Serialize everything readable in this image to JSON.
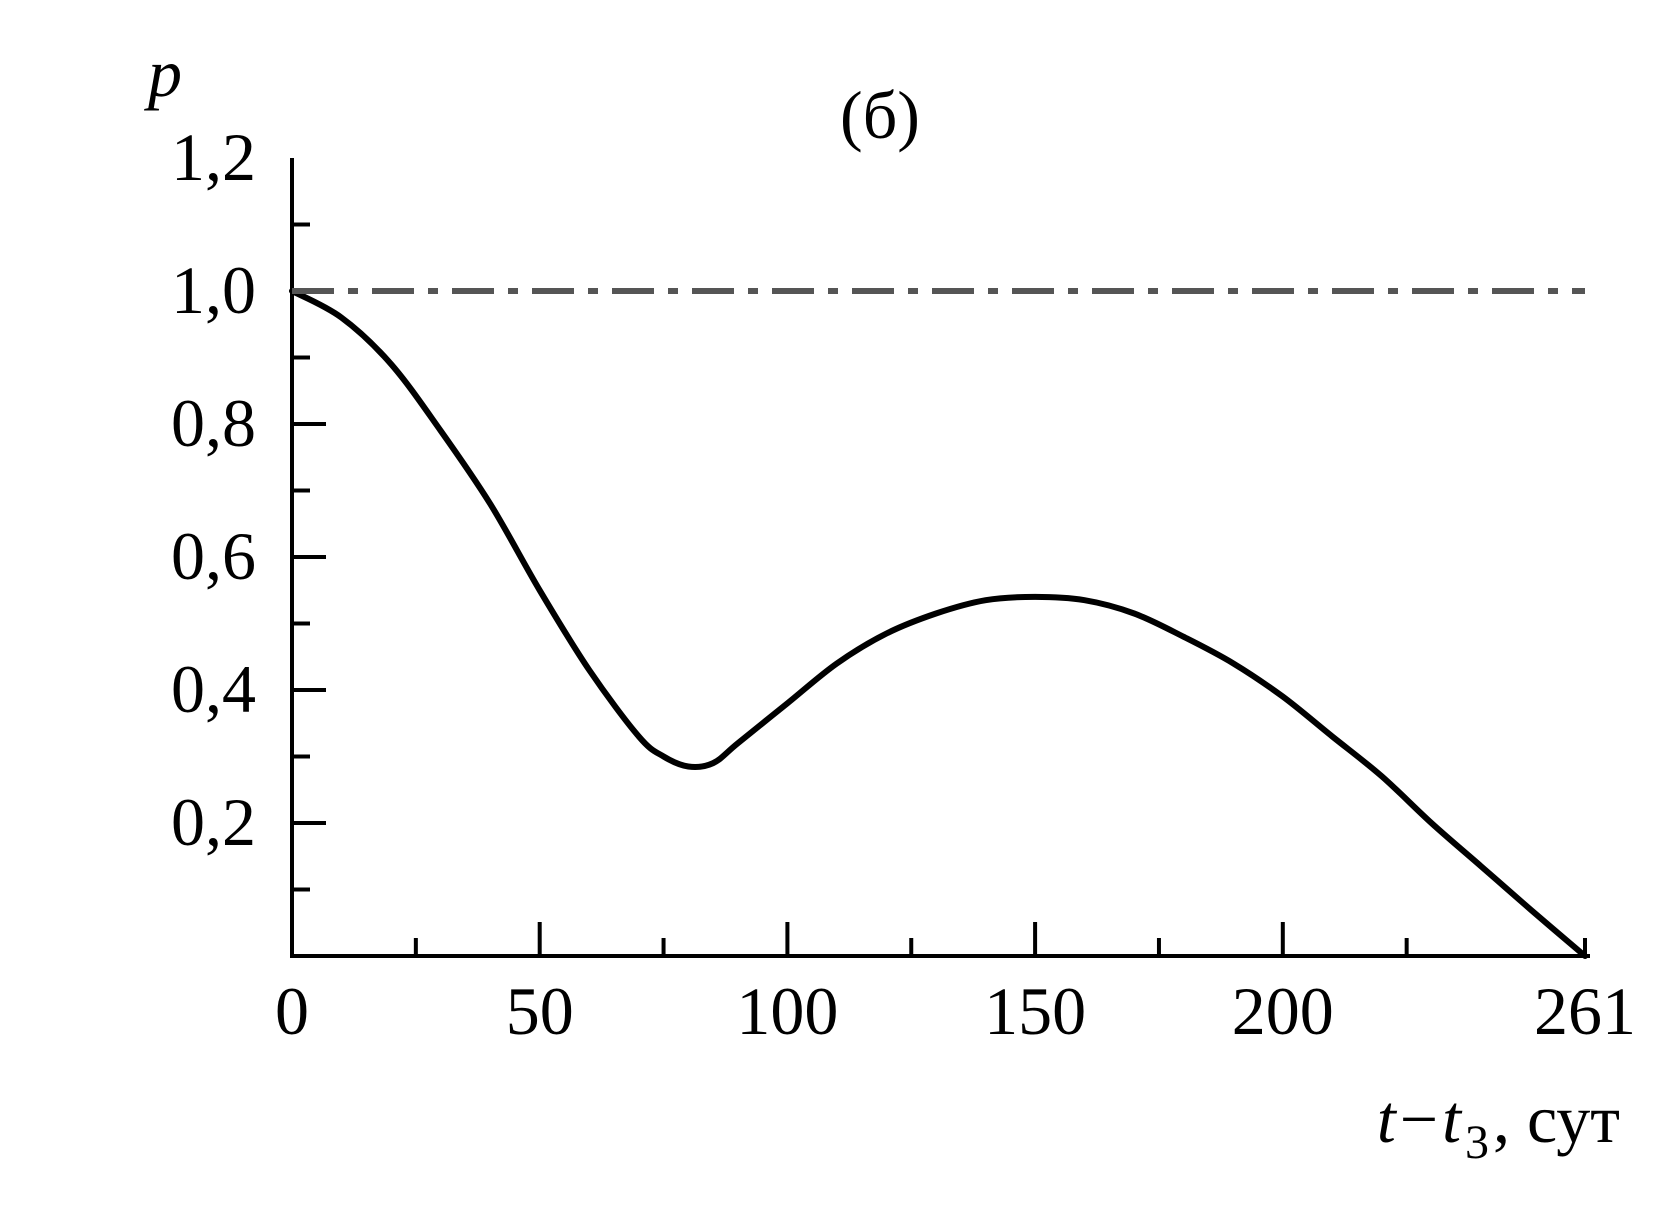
{
  "chart_data": {
    "type": "line",
    "panel_label": "(б)",
    "ylabel": "p",
    "xlabel": {
      "var": "t",
      "minus": "−",
      "var2": "t",
      "sub": "3",
      "unit": ", сут"
    },
    "xlim": [
      0,
      261
    ],
    "ylim": [
      0,
      1.2
    ],
    "x_ticks_major": [
      0,
      50,
      100,
      150,
      200,
      261
    ],
    "x_tick_labels": [
      "0",
      "50",
      "100",
      "150",
      "200",
      "261"
    ],
    "x_ticks_minor": [
      25,
      75,
      125,
      175,
      225
    ],
    "y_ticks_major": [
      0.2,
      0.4,
      0.6,
      0.8,
      1.0,
      1.2
    ],
    "y_tick_labels": [
      "0,2",
      "0,4",
      "0,6",
      "0,8",
      "1,0",
      "1,2"
    ],
    "y_ticks_minor": [
      0.1,
      0.3,
      0.5,
      0.7,
      0.9,
      1.1
    ],
    "grid": false,
    "series": [
      {
        "style": "solid",
        "color": "#000000",
        "x": [
          0,
          10,
          20,
          30,
          40,
          50,
          60,
          70,
          75,
          80,
          85,
          90,
          100,
          110,
          120,
          130,
          140,
          150,
          160,
          170,
          180,
          190,
          200,
          210,
          220,
          230,
          240,
          250,
          261
        ],
        "y": [
          1.0,
          0.96,
          0.89,
          0.79,
          0.68,
          0.55,
          0.43,
          0.33,
          0.3,
          0.285,
          0.29,
          0.32,
          0.38,
          0.44,
          0.485,
          0.515,
          0.535,
          0.54,
          0.535,
          0.515,
          0.48,
          0.44,
          0.39,
          0.33,
          0.27,
          0.2,
          0.135,
          0.07,
          0.0
        ]
      },
      {
        "style": "dash-dot",
        "color": "#555555",
        "x": [
          0,
          261
        ],
        "y": [
          1.0,
          1.0
        ]
      }
    ]
  }
}
